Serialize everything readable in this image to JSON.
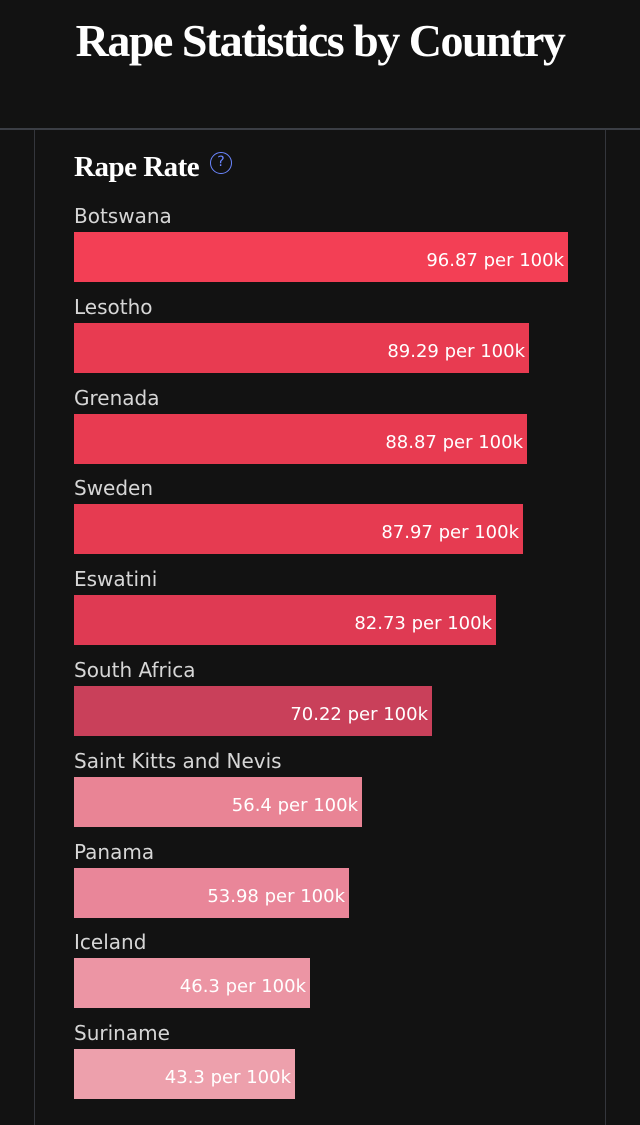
{
  "page": {
    "title": "Rape Statistics by Country"
  },
  "chart_data": {
    "type": "bar",
    "orientation": "horizontal",
    "title": "Rape Rate",
    "help_icon": "question-circle-icon",
    "unit": "per 100k",
    "categories": [
      "Botswana",
      "Lesotho",
      "Grenada",
      "Sweden",
      "Eswatini",
      "South Africa",
      "Saint Kitts and Nevis",
      "Panama",
      "Iceland",
      "Suriname"
    ],
    "values": [
      96.87,
      89.29,
      88.87,
      87.97,
      82.73,
      70.22,
      56.4,
      53.98,
      46.3,
      43.3
    ],
    "value_labels": [
      "96.87 per 100k",
      "89.29 per 100k",
      "88.87 per 100k",
      "87.97 per 100k",
      "82.73 per 100k",
      "70.22 per 100k",
      "56.4 per 100k",
      "53.98 per 100k",
      "46.3 per 100k",
      "43.3 per 100k"
    ],
    "colors": [
      "#f33f55",
      "#e83b51",
      "#e83b51",
      "#e63b51",
      "#df3a53",
      "#c9405a",
      "#e98495",
      "#e98699",
      "#ec95a4",
      "#eda0ac"
    ],
    "xlim": [
      0,
      96.87
    ],
    "grid": false,
    "legend": "none"
  },
  "colors": {
    "background": "#121212",
    "text": "#ffffff",
    "label": "#d6d6d6",
    "accent": "#6b86ff"
  }
}
